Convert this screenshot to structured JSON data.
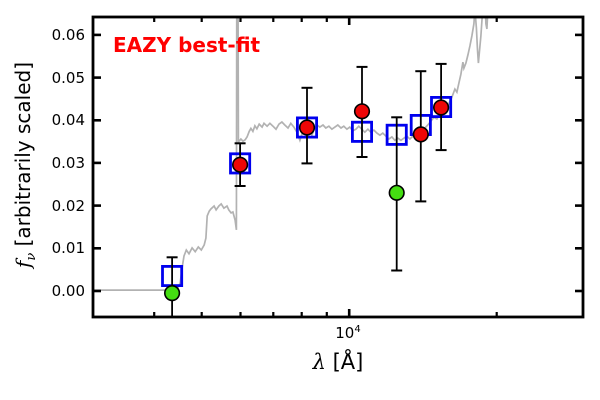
{
  "chart_data": {
    "type": "line",
    "title": "",
    "annotation": "EAZY best-fit",
    "annotation_color": "#ff0000",
    "xlabel_math": "λ",
    "xlabel_rest": " [Å]",
    "ylabel_math": "f",
    "ylabel_sub": "ν",
    "ylabel_rest": " [arbitrarily scaled]",
    "x_scale": "log",
    "xlim": [
      3000,
      30000
    ],
    "ylim": [
      -0.0061,
      0.0642
    ],
    "x_major_ticks": [
      10000
    ],
    "x_major_tick_label": {
      "base": "10",
      "exp": "4"
    },
    "x_minor_ticks": [
      4000,
      5000,
      6000,
      7000,
      8000,
      9000,
      20000
    ],
    "y_ticks": [
      {
        "value": 0.0,
        "label": "0.00"
      },
      {
        "value": 0.01,
        "label": "0.01"
      },
      {
        "value": 0.02,
        "label": "0.02"
      },
      {
        "value": 0.03,
        "label": "0.03"
      },
      {
        "value": 0.04,
        "label": "0.04"
      },
      {
        "value": 0.05,
        "label": "0.05"
      },
      {
        "value": 0.06,
        "label": "0.06"
      }
    ],
    "grid": false,
    "legend": false,
    "colors": {
      "spectrum": "#b2b2b2",
      "model_marker": "#0000ee",
      "observed": "#ee0606",
      "observed_alt": "#44dd11",
      "errorbar": "#000000",
      "frame": "#000000"
    },
    "series": [
      {
        "name": "eazy-model-spectrum",
        "type": "line",
        "color_key": "spectrum",
        "points": [
          [
            3000,
            0.0002
          ],
          [
            4450,
            0.0002
          ],
          [
            4520,
            0.0019
          ],
          [
            4560,
            0.0054
          ],
          [
            4600,
            0.0082
          ],
          [
            4650,
            0.0096
          ],
          [
            4710,
            0.0087
          ],
          [
            4780,
            0.0101
          ],
          [
            4850,
            0.0092
          ],
          [
            4920,
            0.0103
          ],
          [
            4990,
            0.0096
          ],
          [
            5060,
            0.0108
          ],
          [
            5100,
            0.0124
          ],
          [
            5130,
            0.0176
          ],
          [
            5180,
            0.0187
          ],
          [
            5220,
            0.0192
          ],
          [
            5300,
            0.0199
          ],
          [
            5350,
            0.019
          ],
          [
            5420,
            0.0199
          ],
          [
            5480,
            0.0204
          ],
          [
            5550,
            0.0194
          ],
          [
            5630,
            0.0199
          ],
          [
            5680,
            0.019
          ],
          [
            5740,
            0.0183
          ],
          [
            5790,
            0.0185
          ],
          [
            5850,
            0.0166
          ],
          [
            5885,
            0.0143
          ],
          [
            5900,
            0.09
          ],
          [
            5925,
            0.09
          ],
          [
            5940,
            0.0349
          ],
          [
            5960,
            0.0351
          ],
          [
            6010,
            0.0356
          ],
          [
            6070,
            0.0351
          ],
          [
            6130,
            0.0354
          ],
          [
            6190,
            0.0361
          ],
          [
            6250,
            0.0374
          ],
          [
            6300,
            0.0381
          ],
          [
            6360,
            0.0374
          ],
          [
            6420,
            0.0387
          ],
          [
            6480,
            0.038
          ],
          [
            6550,
            0.0391
          ],
          [
            6640,
            0.0384
          ],
          [
            6700,
            0.0393
          ],
          [
            6800,
            0.0386
          ],
          [
            6890,
            0.0393
          ],
          [
            6990,
            0.0386
          ],
          [
            7090,
            0.0379
          ],
          [
            7190,
            0.0391
          ],
          [
            7290,
            0.0396
          ],
          [
            7390,
            0.0389
          ],
          [
            7500,
            0.0382
          ],
          [
            7600,
            0.0393
          ],
          [
            7710,
            0.0384
          ],
          [
            7820,
            0.0372
          ],
          [
            7930,
            0.0353
          ],
          [
            8010,
            0.0368
          ],
          [
            8080,
            0.0384
          ],
          [
            8200,
            0.0391
          ],
          [
            8310,
            0.0379
          ],
          [
            8390,
            0.0365
          ],
          [
            8470,
            0.0377
          ],
          [
            8590,
            0.0389
          ],
          [
            8710,
            0.0384
          ],
          [
            8840,
            0.0389
          ],
          [
            8960,
            0.0382
          ],
          [
            9090,
            0.0386
          ],
          [
            9220,
            0.0379
          ],
          [
            9350,
            0.0384
          ],
          [
            9480,
            0.0389
          ],
          [
            9620,
            0.0382
          ],
          [
            9750,
            0.0386
          ],
          [
            9890,
            0.0379
          ],
          [
            10030,
            0.0384
          ],
          [
            10170,
            0.0375
          ],
          [
            10320,
            0.0379
          ],
          [
            10460,
            0.0386
          ],
          [
            10610,
            0.0379
          ],
          [
            10760,
            0.0372
          ],
          [
            10920,
            0.0379
          ],
          [
            11070,
            0.0372
          ],
          [
            11230,
            0.0377
          ],
          [
            11390,
            0.037
          ],
          [
            11550,
            0.0365
          ],
          [
            11710,
            0.037
          ],
          [
            11880,
            0.0363
          ],
          [
            12050,
            0.0356
          ],
          [
            12220,
            0.0361
          ],
          [
            12390,
            0.0353
          ],
          [
            12570,
            0.0358
          ],
          [
            12750,
            0.0353
          ],
          [
            12930,
            0.0358
          ],
          [
            13110,
            0.0363
          ],
          [
            13300,
            0.0356
          ],
          [
            13490,
            0.0363
          ],
          [
            13680,
            0.037
          ],
          [
            13870,
            0.0365
          ],
          [
            14070,
            0.0375
          ],
          [
            14270,
            0.0382
          ],
          [
            14470,
            0.0389
          ],
          [
            14680,
            0.0398
          ],
          [
            14890,
            0.0407
          ],
          [
            15100,
            0.0403
          ],
          [
            15310,
            0.0417
          ],
          [
            15530,
            0.0431
          ],
          [
            15750,
            0.0426
          ],
          [
            15980,
            0.044
          ],
          [
            16200,
            0.0454
          ],
          [
            16430,
            0.0473
          ],
          [
            16590,
            0.0466
          ],
          [
            16740,
            0.0487
          ],
          [
            16900,
            0.0508
          ],
          [
            17060,
            0.0536
          ],
          [
            17140,
            0.0522
          ],
          [
            17300,
            0.0534
          ],
          [
            17470,
            0.0553
          ],
          [
            17630,
            0.0574
          ],
          [
            17800,
            0.0598
          ],
          [
            17970,
            0.0626
          ],
          [
            18050,
            0.066
          ],
          [
            18180,
            0.0616
          ],
          [
            18270,
            0.0565
          ],
          [
            18350,
            0.0534
          ],
          [
            18440,
            0.056
          ],
          [
            18570,
            0.0598
          ],
          [
            18700,
            0.065
          ],
          [
            18900,
            0.07
          ],
          [
            18970,
            0.065
          ],
          [
            19010,
            0.0626
          ],
          [
            19100,
            0.0614
          ],
          [
            19190,
            0.066
          ],
          [
            19300,
            0.09
          ]
        ]
      },
      {
        "name": "model-photometry",
        "type": "scatter",
        "marker": "open-square",
        "color_key": "model_marker",
        "points": [
          [
            4350,
            0.0035
          ],
          [
            5990,
            0.0299
          ],
          [
            8200,
            0.0383
          ],
          [
            10620,
            0.0373
          ],
          [
            12500,
            0.0366
          ],
          [
            14000,
            0.0389
          ],
          [
            15400,
            0.0431
          ]
        ]
      },
      {
        "name": "observed-photometry",
        "type": "scatter",
        "marker": "filled-circle",
        "color_key": "observed",
        "points": [
          {
            "x": 5990,
            "y": 0.0296,
            "lo": 0.0246,
            "hi": 0.0346
          },
          {
            "x": 8200,
            "y": 0.0383,
            "lo": 0.0299,
            "hi": 0.0476
          },
          {
            "x": 10620,
            "y": 0.0421,
            "lo": 0.0314,
            "hi": 0.0525
          },
          {
            "x": 14000,
            "y": 0.0367,
            "lo": 0.021,
            "hi": 0.0515
          },
          {
            "x": 15400,
            "y": 0.043,
            "lo": 0.033,
            "hi": 0.0532
          }
        ]
      },
      {
        "name": "observed-photometry-flagged",
        "type": "scatter",
        "marker": "filled-circle",
        "color_key": "observed_alt",
        "points": [
          {
            "x": 4350,
            "y": -0.0005,
            "lo": -0.01,
            "hi": 0.0079
          },
          {
            "x": 12500,
            "y": 0.023,
            "lo": 0.0048,
            "hi": 0.0407
          }
        ]
      }
    ]
  }
}
